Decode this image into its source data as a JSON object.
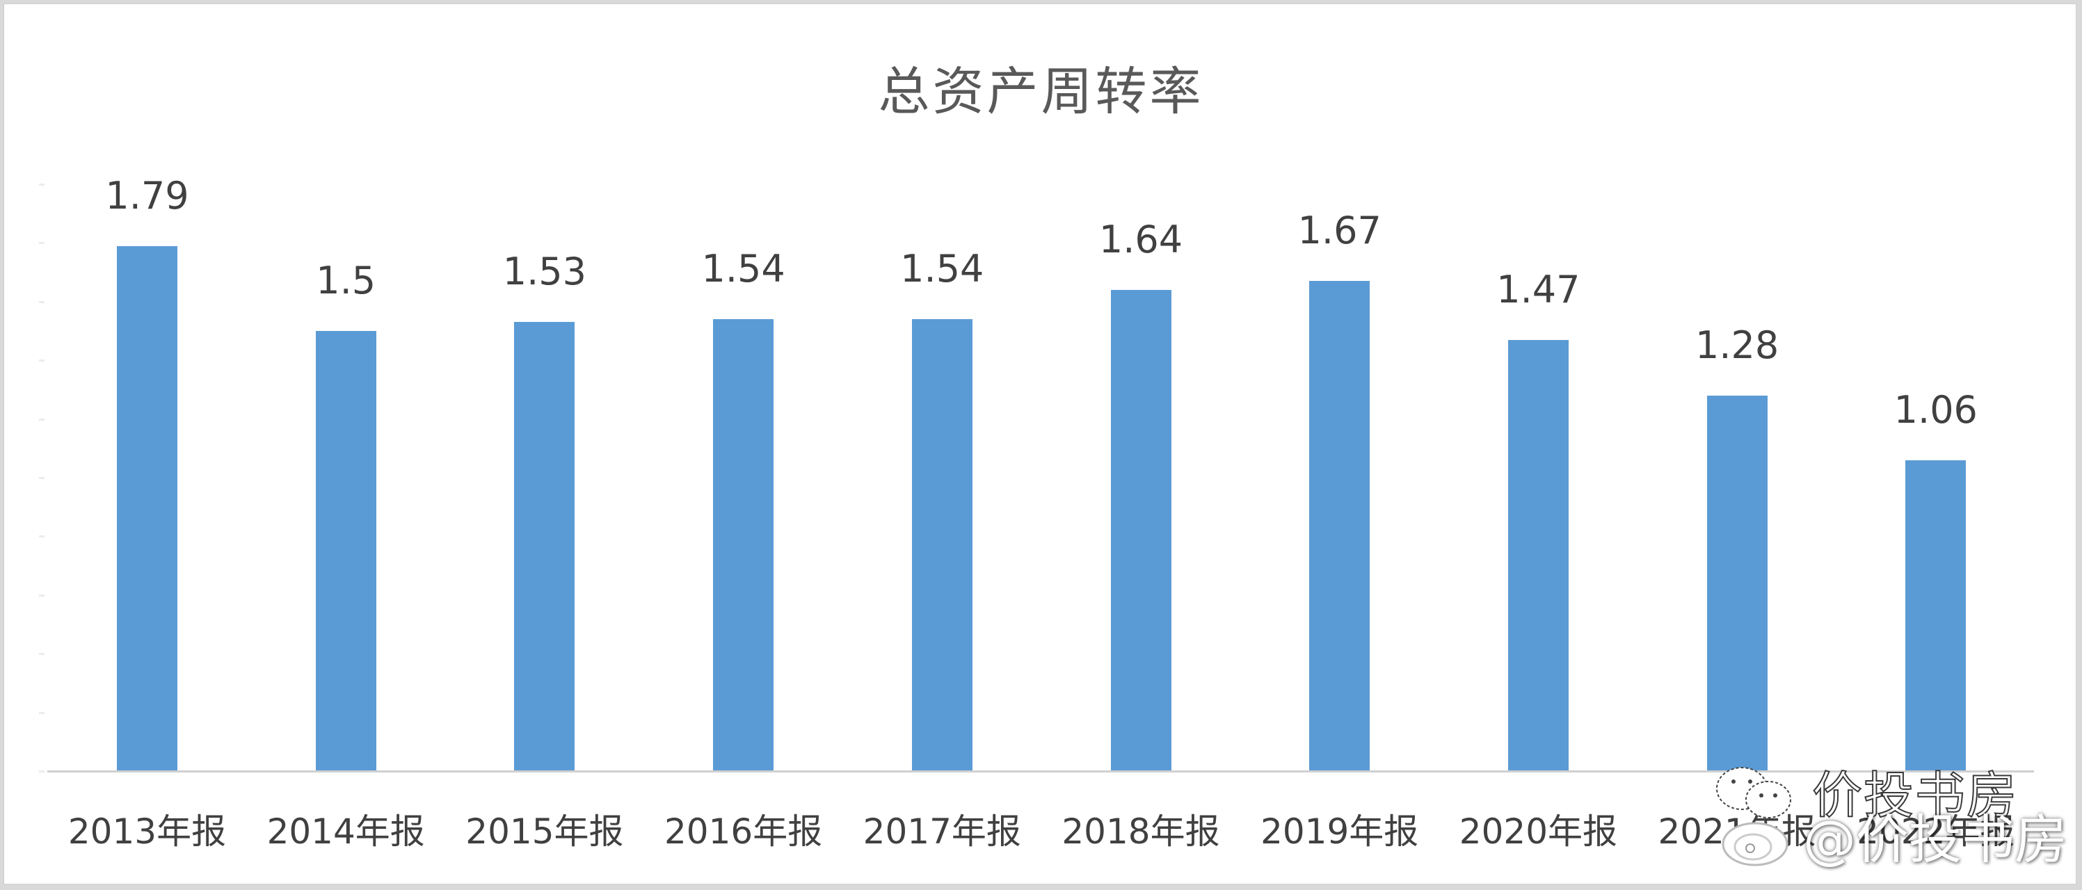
{
  "chart_data": {
    "type": "bar",
    "title": "总资产周转率",
    "categories": [
      "2013年报",
      "2014年报",
      "2015年报",
      "2016年报",
      "2017年报",
      "2018年报",
      "2019年报",
      "2020年报",
      "2021年报",
      "2022年报"
    ],
    "values": [
      1.79,
      1.5,
      1.53,
      1.54,
      1.54,
      1.64,
      1.67,
      1.47,
      1.28,
      1.06
    ],
    "value_labels": [
      "1.79",
      "1.5",
      "1.53",
      "1.54",
      "1.54",
      "1.64",
      "1.67",
      "1.47",
      "1.28",
      "1.06"
    ],
    "xlabel": "",
    "ylabel": "",
    "ylim": [
      0,
      2.0
    ],
    "grid": false,
    "legend": null,
    "bar_color": "#5b9bd5"
  },
  "title": "总资产周转率",
  "watermark": {
    "wechat_text": "价投书房",
    "weibo_text": "@价投书房"
  },
  "colors": {
    "bar": "#5b9bd5",
    "text": "#404040",
    "title": "#595959",
    "axis": "#d0d0d0"
  }
}
